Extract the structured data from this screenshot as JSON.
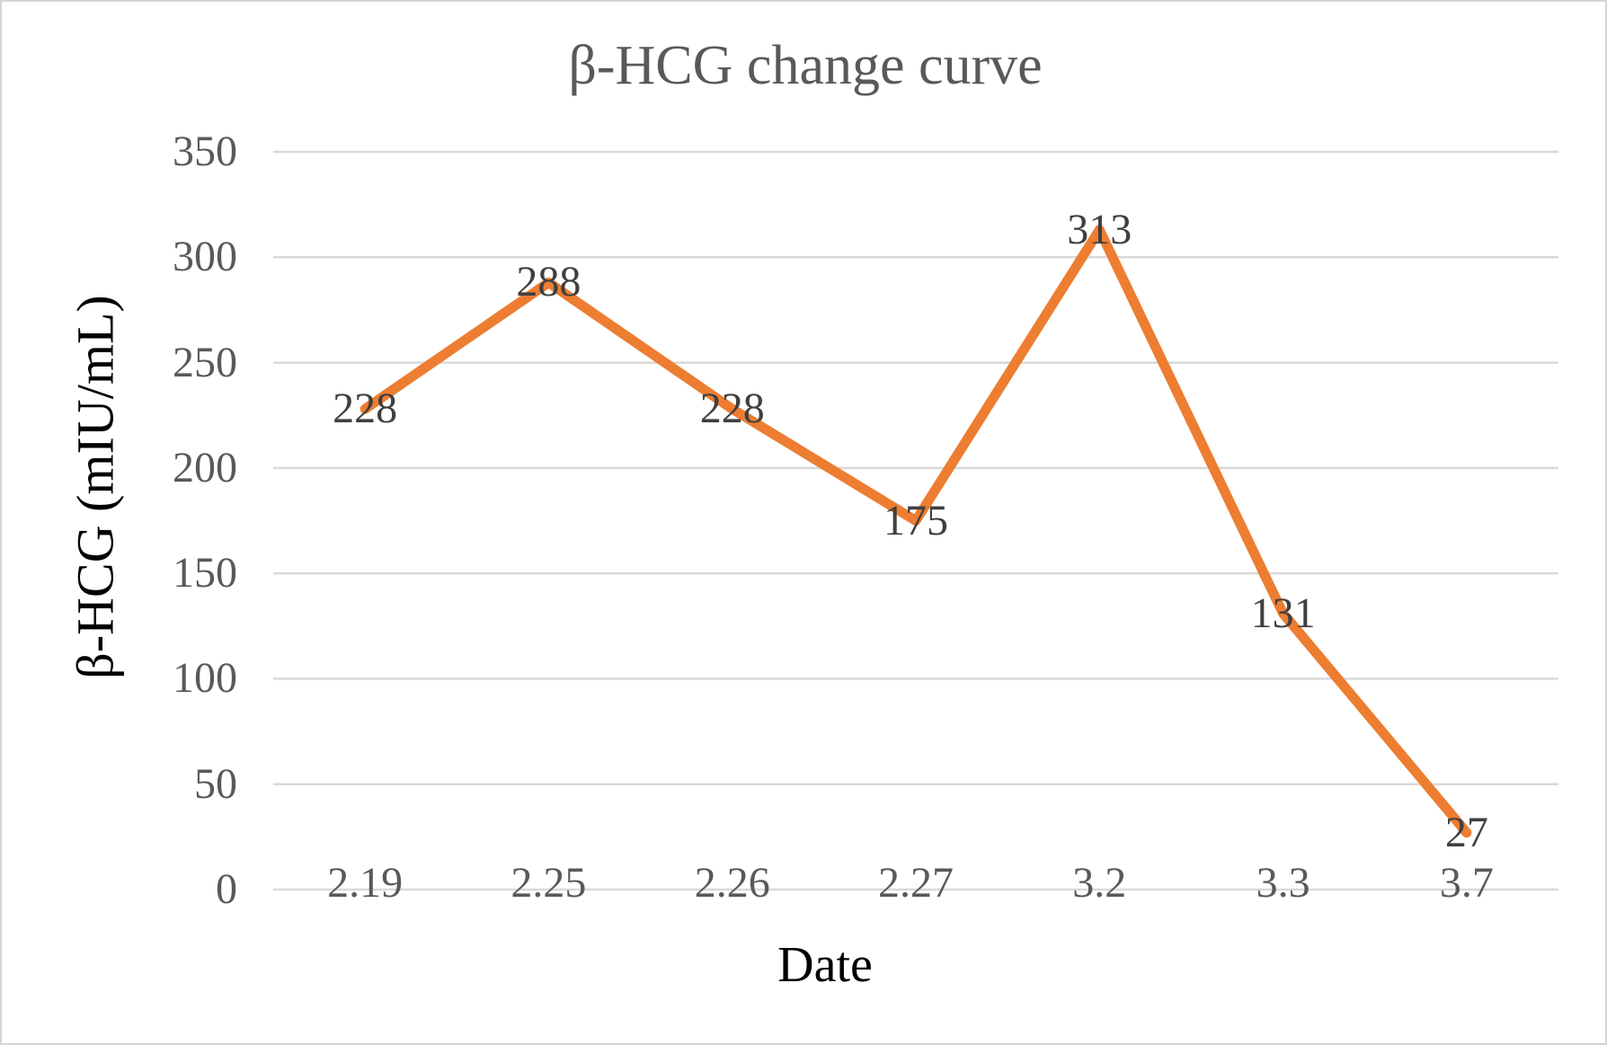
{
  "chart_data": {
    "type": "line",
    "title": "β-HCG change curve",
    "xlabel": "Date",
    "ylabel": "β-HCG (mIU/mL)",
    "categories": [
      "2.19",
      "2.25",
      "2.26",
      "2.27",
      "3.2",
      "3.3",
      "3.7"
    ],
    "series": [
      {
        "name": "β-HCG",
        "values": [
          228,
          288,
          228,
          175,
          313,
          131,
          27
        ],
        "color": "#ED7D31"
      }
    ],
    "data_labels": [
      228,
      288,
      228,
      175,
      313,
      131,
      27
    ],
    "data_label_position": "center",
    "yticks": [
      0,
      50,
      100,
      150,
      200,
      250,
      300,
      350
    ],
    "ylim": [
      0,
      350
    ],
    "grid": "horizontal",
    "gridline_color": "#D9D9D9",
    "legend": "none",
    "background_color": "#FFFFFF",
    "title_color": "#595959",
    "tick_label_color": "#595959",
    "data_label_color": "#3F3F3F",
    "axis_title_color": "#000000"
  }
}
